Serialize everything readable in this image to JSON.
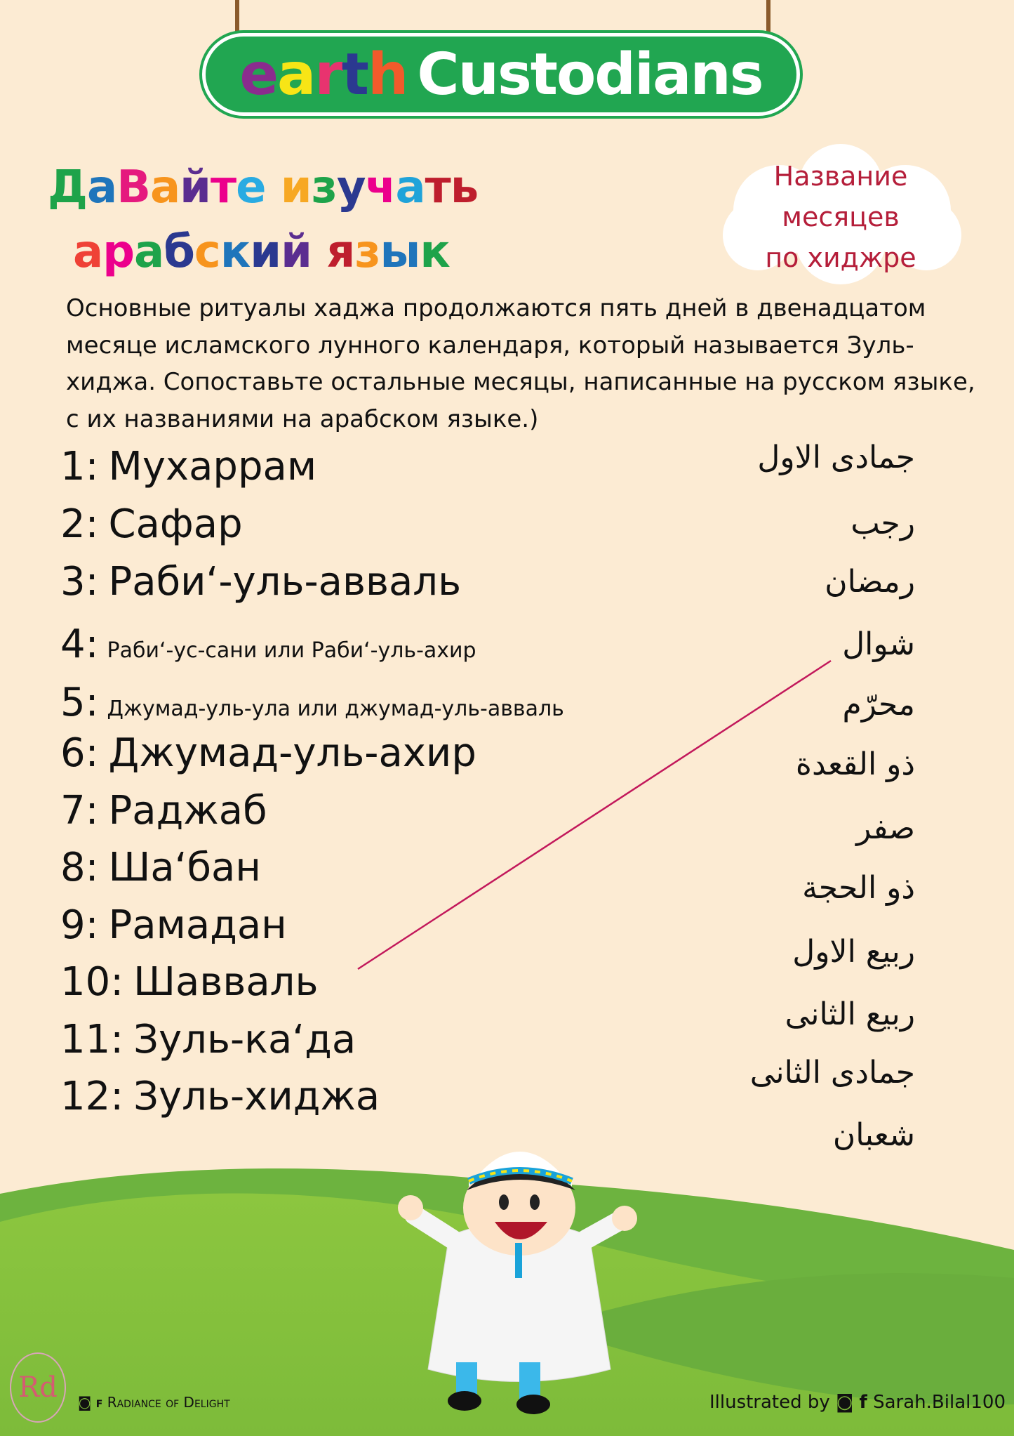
{
  "logo": {
    "earth_letters": [
      {
        "char": "e",
        "color": "#8b2c8e"
      },
      {
        "char": "a",
        "color": "#f7e516"
      },
      {
        "char": "r",
        "color": "#e8336f"
      },
      {
        "char": "t",
        "color": "#2b3990"
      },
      {
        "char": "h",
        "color": "#f15a2b"
      }
    ],
    "custodians": "Custodians",
    "bg_color": "#21a651"
  },
  "title": {
    "line1": [
      {
        "char": "Д",
        "color": "#1ea34a"
      },
      {
        "char": "а",
        "color": "#1f75bb"
      },
      {
        "char": "В",
        "color": "#e5197e"
      },
      {
        "char": "а",
        "color": "#f7941d"
      },
      {
        "char": "й",
        "color": "#5b2d90"
      },
      {
        "char": "т",
        "color": "#ec008c"
      },
      {
        "char": "е",
        "color": "#29abe2"
      },
      {
        "char": " ",
        "color": "#000"
      },
      {
        "char": "и",
        "color": "#f7a823"
      },
      {
        "char": "з",
        "color": "#1ea34a"
      },
      {
        "char": "у",
        "color": "#2b3990"
      },
      {
        "char": "ч",
        "color": "#ec008c"
      },
      {
        "char": "а",
        "color": "#1fa3d9"
      },
      {
        "char": "ть",
        "color": "#be1e2d"
      }
    ],
    "line2": [
      {
        "char": "а",
        "color": "#ef4136"
      },
      {
        "char": "р",
        "color": "#ec008c"
      },
      {
        "char": "а",
        "color": "#1ea34a"
      },
      {
        "char": "б",
        "color": "#2b3990"
      },
      {
        "char": "с",
        "color": "#f7941d"
      },
      {
        "char": "к",
        "color": "#1f75bb"
      },
      {
        "char": "и",
        "color": "#2b3990"
      },
      {
        "char": "й",
        "color": "#5b2d90"
      },
      {
        "char": " ",
        "color": "#000"
      },
      {
        "char": "я",
        "color": "#be1e2d"
      },
      {
        "char": "з",
        "color": "#f7941d"
      },
      {
        "char": "ы",
        "color": "#1f75bb"
      },
      {
        "char": "к",
        "color": "#1ea34a"
      }
    ]
  },
  "cloud": {
    "lines": [
      "Название",
      "месяцев",
      "по  хиджре"
    ],
    "text_color": "#b51e3a"
  },
  "intro": "Основные ритуалы хаджа продолжаются пять дней в двенадцатом месяце исламского лунного календаря, который называется Зуль-хиджа. Сопоставьте остальные месяцы, написанные на русском языке, с их названиями на арабском языке.)",
  "russian_months": [
    {
      "num": "1:",
      "name": "Мухаррам",
      "small": false
    },
    {
      "num": "2:",
      "name": "Сафар",
      "small": false
    },
    {
      "num": "3:",
      "name": "Раби‘-уль-авваль",
      "small": false
    },
    {
      "num": "4:",
      "name": "Раби‘-ус-сани или Раби‘-уль-ахир",
      "small": true
    },
    {
      "num": "5:",
      "name": "Джумад-уль-ула или джумад-уль-авваль",
      "small": true
    },
    {
      "num": "6:",
      "name": "Джумад-уль-ахир",
      "small": false
    },
    {
      "num": "7:",
      "name": "Раджаб",
      "small": false
    },
    {
      "num": "8:",
      "name": "Ша‘бан",
      "small": false
    },
    {
      "num": "9:",
      "name": "Рамадан",
      "small": false
    },
    {
      "num": "10:",
      "name": "Шавваль",
      "small": false
    },
    {
      "num": "11:",
      "name": "Зуль-ка‘да",
      "small": false
    },
    {
      "num": "12:",
      "name": "Зуль-хиджа",
      "small": false
    }
  ],
  "arabic_months": [
    "جمادى الاول",
    "رجب",
    "رمضان",
    "شوال",
    "محرّم",
    "ذو القعدة",
    "صفر",
    "ذو الحجة",
    "ربيع الاول",
    "ربيع الثانى",
    "جمادى الثانى",
    "شعبان"
  ],
  "match_line": {
    "from": "شوال",
    "to": "10: Шавваль",
    "color": "#c2185b"
  },
  "footer": {
    "left_logo": "Rd",
    "left_text": "Radiance of Delight",
    "right_text": "Illustrated by",
    "right_handle": "Sarah.Bilal100",
    "instagram_icon": "instagram-icon",
    "facebook_icon": "facebook-icon"
  }
}
